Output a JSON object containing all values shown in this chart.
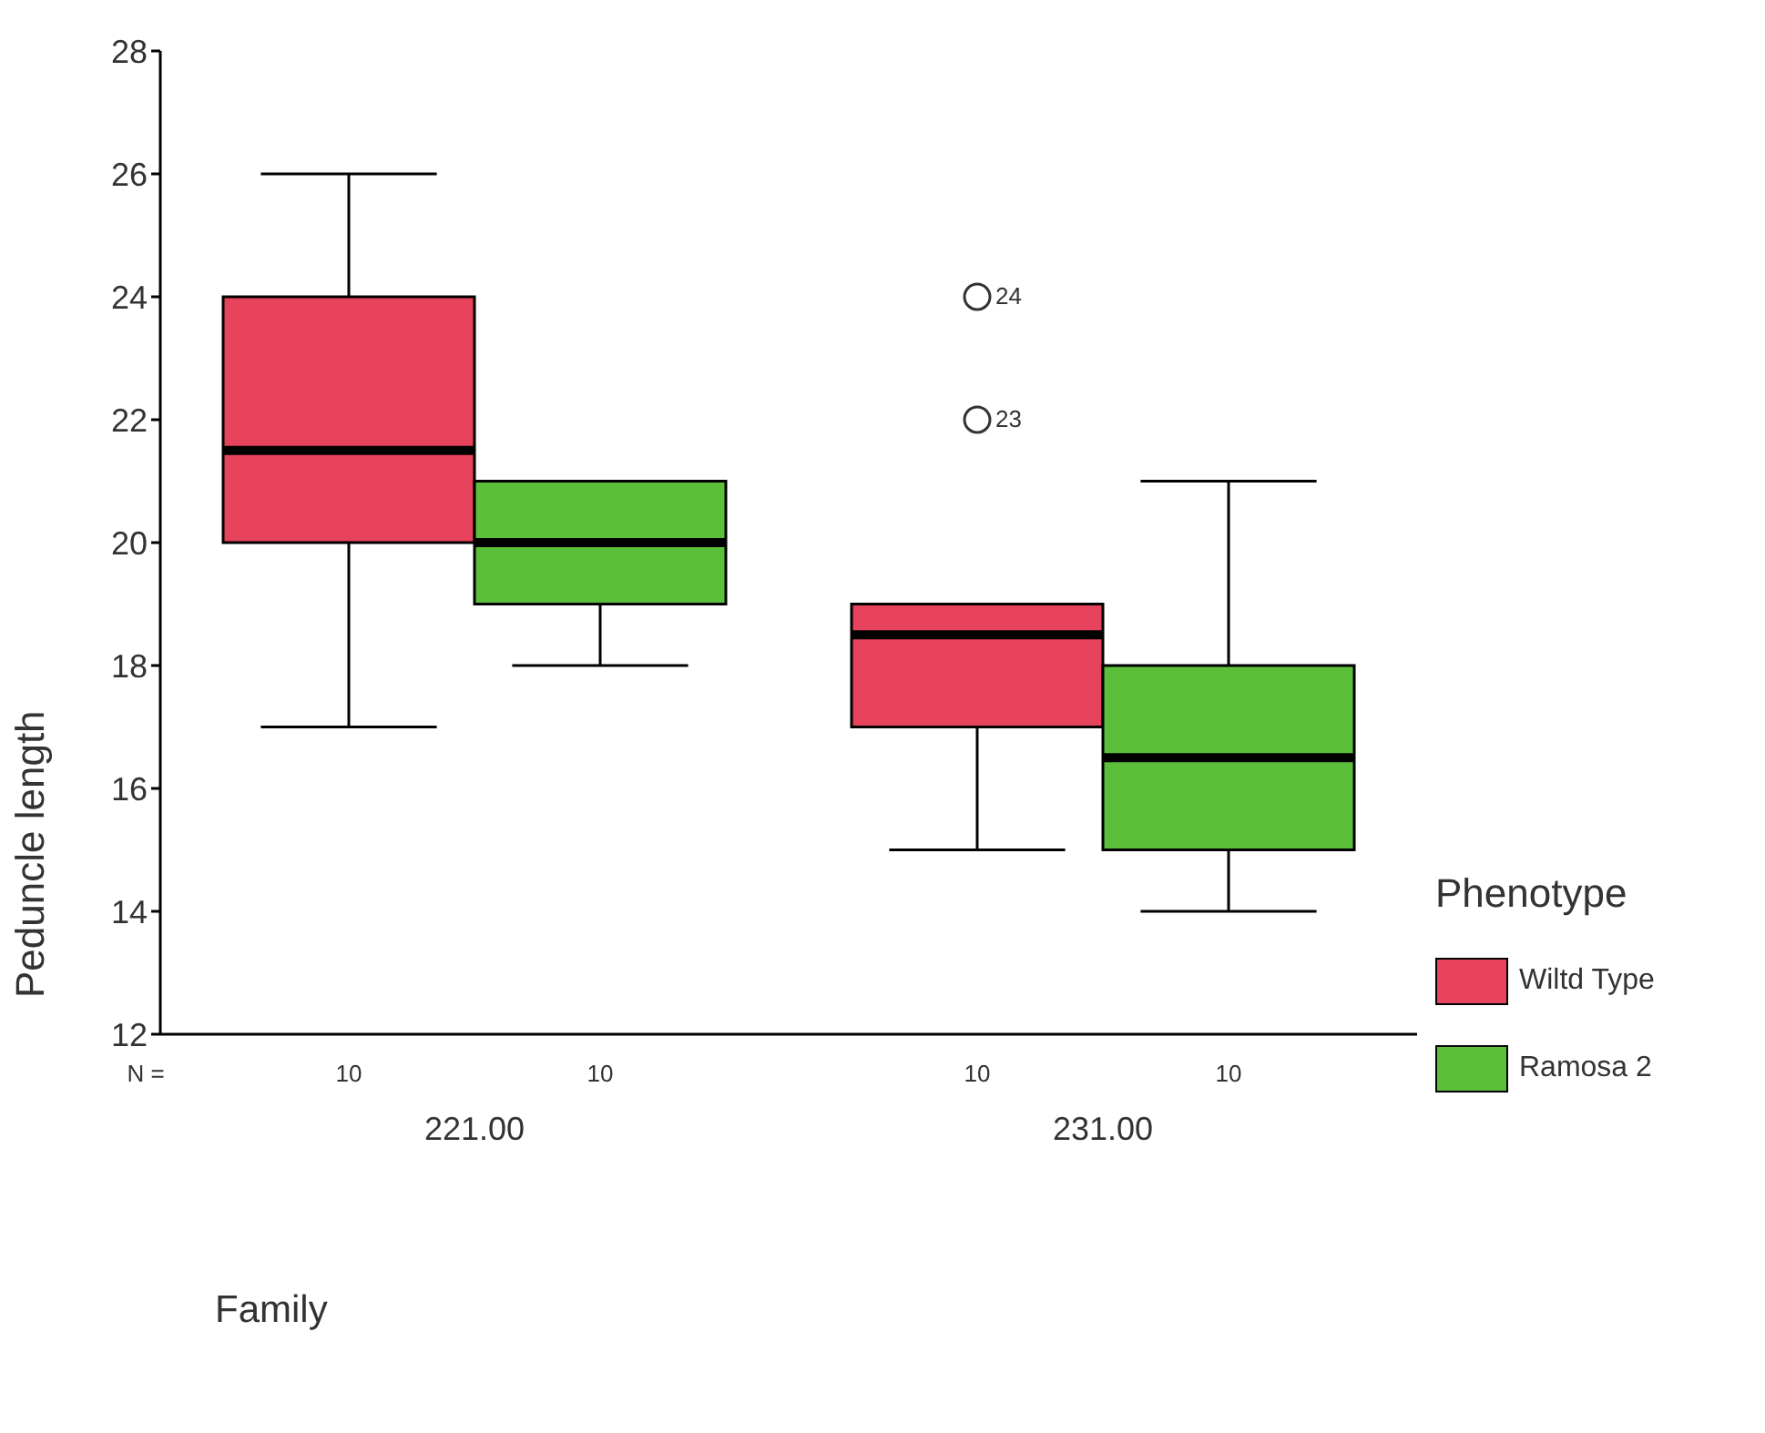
{
  "chart_data": {
    "type": "box",
    "xlabel": "Family",
    "ylabel": "Peduncle length",
    "legend_title": "Phenotype",
    "legend": "right",
    "categories": [
      "221.00",
      "231.00"
    ],
    "series": [
      {
        "name": "Wiltd Type",
        "color": "#e8435c",
        "boxes": [
          {
            "low": 17,
            "q1": 20,
            "median": 21.5,
            "q3": 24,
            "high": 26
          },
          {
            "low": 15,
            "q1": 17,
            "median": 18.5,
            "q3": 19,
            "high": 19,
            "outliers": [
              22,
              24
            ]
          }
        ]
      },
      {
        "name": "Ramosa 2",
        "color": "#5cbf3a",
        "boxes": [
          {
            "low": 18,
            "q1": 19,
            "median": 20,
            "q3": 21,
            "high": 21
          },
          {
            "low": 14,
            "q1": 15,
            "median": 16.5,
            "q3": 18,
            "high": 21
          }
        ]
      }
    ],
    "ylim": [
      12,
      28
    ],
    "yticks": [
      12,
      14,
      16,
      18,
      20,
      22,
      24,
      26,
      28
    ],
    "annotations": [
      "N =",
      "10",
      "10",
      "10",
      "10",
      "23",
      "24"
    ]
  }
}
